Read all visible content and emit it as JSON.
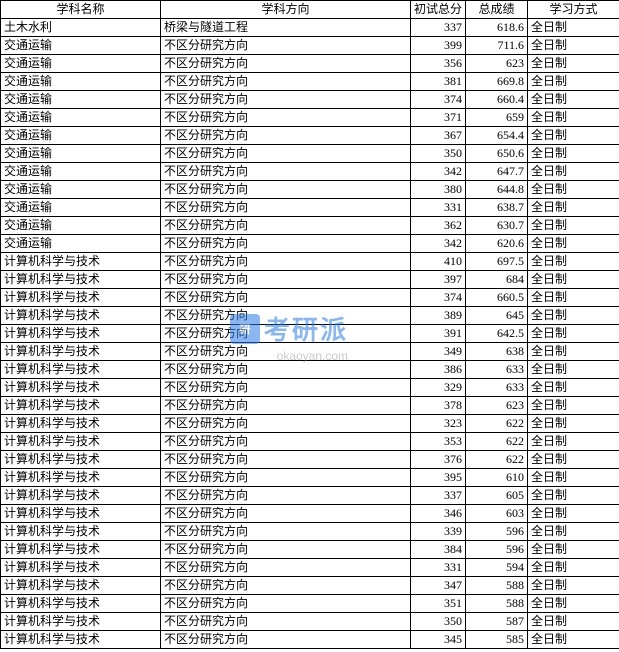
{
  "table": {
    "columns": [
      "学科名称",
      "学科方向",
      "初试总分",
      "总成绩",
      "学习方式"
    ],
    "rows": [
      [
        "土木水利",
        "桥梁与隧道工程",
        "337",
        "618.6",
        "全日制"
      ],
      [
        "交通运输",
        "不区分研究方向",
        "399",
        "711.6",
        "全日制"
      ],
      [
        "交通运输",
        "不区分研究方向",
        "356",
        "623",
        "全日制"
      ],
      [
        "交通运输",
        "不区分研究方向",
        "381",
        "669.8",
        "全日制"
      ],
      [
        "交通运输",
        "不区分研究方向",
        "374",
        "660.4",
        "全日制"
      ],
      [
        "交通运输",
        "不区分研究方向",
        "371",
        "659",
        "全日制"
      ],
      [
        "交通运输",
        "不区分研究方向",
        "367",
        "654.4",
        "全日制"
      ],
      [
        "交通运输",
        "不区分研究方向",
        "350",
        "650.6",
        "全日制"
      ],
      [
        "交通运输",
        "不区分研究方向",
        "342",
        "647.7",
        "全日制"
      ],
      [
        "交通运输",
        "不区分研究方向",
        "380",
        "644.8",
        "全日制"
      ],
      [
        "交通运输",
        "不区分研究方向",
        "331",
        "638.7",
        "全日制"
      ],
      [
        "交通运输",
        "不区分研究方向",
        "362",
        "630.7",
        "全日制"
      ],
      [
        "交通运输",
        "不区分研究方向",
        "342",
        "620.6",
        "全日制"
      ],
      [
        "计算机科学与技术",
        "不区分研究方向",
        "410",
        "697.5",
        "全日制"
      ],
      [
        "计算机科学与技术",
        "不区分研究方向",
        "397",
        "684",
        "全日制"
      ],
      [
        "计算机科学与技术",
        "不区分研究方向",
        "374",
        "660.5",
        "全日制"
      ],
      [
        "计算机科学与技术",
        "不区分研究方向",
        "389",
        "645",
        "全日制"
      ],
      [
        "计算机科学与技术",
        "不区分研究方向",
        "391",
        "642.5",
        "全日制"
      ],
      [
        "计算机科学与技术",
        "不区分研究方向",
        "349",
        "638",
        "全日制"
      ],
      [
        "计算机科学与技术",
        "不区分研究方向",
        "386",
        "633",
        "全日制"
      ],
      [
        "计算机科学与技术",
        "不区分研究方向",
        "329",
        "633",
        "全日制"
      ],
      [
        "计算机科学与技术",
        "不区分研究方向",
        "378",
        "623",
        "全日制"
      ],
      [
        "计算机科学与技术",
        "不区分研究方向",
        "323",
        "622",
        "全日制"
      ],
      [
        "计算机科学与技术",
        "不区分研究方向",
        "353",
        "622",
        "全日制"
      ],
      [
        "计算机科学与技术",
        "不区分研究方向",
        "376",
        "622",
        "全日制"
      ],
      [
        "计算机科学与技术",
        "不区分研究方向",
        "395",
        "610",
        "全日制"
      ],
      [
        "计算机科学与技术",
        "不区分研究方向",
        "337",
        "605",
        "全日制"
      ],
      [
        "计算机科学与技术",
        "不区分研究方向",
        "346",
        "603",
        "全日制"
      ],
      [
        "计算机科学与技术",
        "不区分研究方向",
        "339",
        "596",
        "全日制"
      ],
      [
        "计算机科学与技术",
        "不区分研究方向",
        "384",
        "596",
        "全日制"
      ],
      [
        "计算机科学与技术",
        "不区分研究方向",
        "331",
        "594",
        "全日制"
      ],
      [
        "计算机科学与技术",
        "不区分研究方向",
        "347",
        "588",
        "全日制"
      ],
      [
        "计算机科学与技术",
        "不区分研究方向",
        "351",
        "588",
        "全日制"
      ],
      [
        "计算机科学与技术",
        "不区分研究方向",
        "350",
        "587",
        "全日制"
      ],
      [
        "计算机科学与技术",
        "不区分研究方向",
        "345",
        "585",
        "全日制"
      ]
    ],
    "col_classes": [
      "col-subject",
      "col-direction",
      "col-score1",
      "col-score2",
      "col-mode"
    ],
    "border_color": "#000000",
    "background_color": "#ffffff",
    "font_size": 12
  },
  "watermark": {
    "logo_text": "研",
    "brand_text": "考研派",
    "url": "okaoyan.com",
    "brand_color": "#2b7de9",
    "url_color": "#9f9f9f"
  }
}
